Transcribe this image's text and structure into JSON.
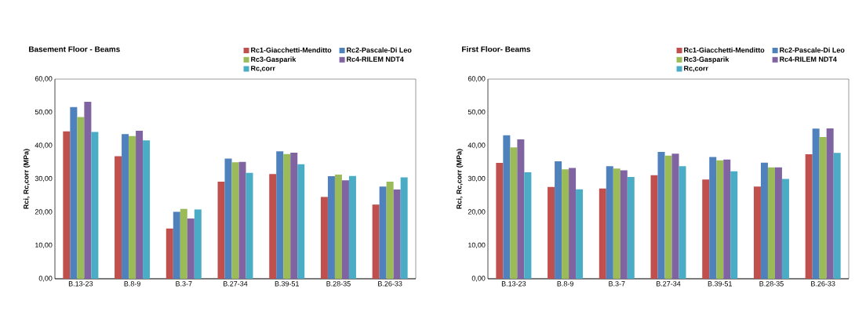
{
  "chart_data": [
    {
      "type": "bar",
      "title": "Basement Floor - Beams",
      "ylabel": "Rci, Rc,corr (MPa)",
      "categories": [
        "B.13-23",
        "B.8-9",
        "B.3-7",
        "B.27-34",
        "B.39-51",
        "B.28-35",
        "B.26-33"
      ],
      "series": [
        {
          "name": "Rc1-Giacchetti-Menditto",
          "color": "#c0504d",
          "values": [
            44.3,
            36.8,
            15.1,
            29.2,
            31.5,
            24.6,
            22.3
          ]
        },
        {
          "name": "Rc2-Pascale-Di Leo",
          "color": "#4f81bd",
          "values": [
            51.6,
            43.5,
            20.1,
            36.1,
            38.3,
            30.8,
            27.7
          ]
        },
        {
          "name": "Rc3-Gasparik",
          "color": "#9bbb59",
          "values": [
            48.6,
            42.9,
            21.0,
            35.0,
            37.5,
            31.3,
            29.2
          ]
        },
        {
          "name": "Rc4-RILEM NDT4",
          "color": "#8064a2",
          "values": [
            53.2,
            44.5,
            18.1,
            35.1,
            37.9,
            29.6,
            26.8
          ]
        },
        {
          "name": "Rc,corr",
          "color": "#4bacc6",
          "values": [
            44.1,
            41.6,
            20.8,
            31.8,
            34.4,
            30.9,
            30.5
          ]
        }
      ],
      "ylim": [
        0,
        60
      ],
      "yticks": [
        {
          "value": 0,
          "label": "0,00"
        },
        {
          "value": 10,
          "label": "10,00"
        },
        {
          "value": 20,
          "label": "20,00"
        },
        {
          "value": 30,
          "label": "30,00"
        },
        {
          "value": 40,
          "label": "40,00"
        },
        {
          "value": 50,
          "label": "50,00"
        },
        {
          "value": 60,
          "label": "60,00"
        }
      ],
      "legend": "top"
    },
    {
      "type": "bar",
      "title": "First Floor- Beams",
      "ylabel": "Rci, Rc,corr (MPa)",
      "categories": [
        "B.13-23",
        "B.8-9",
        "B.3-7",
        "B.27-34",
        "B.39-51",
        "B.28-35",
        "B.26-33"
      ],
      "series": [
        {
          "name": "Rc1-Giacchetti-Menditto",
          "color": "#c0504d",
          "values": [
            34.8,
            27.6,
            27.1,
            31.1,
            29.8,
            27.7,
            37.4
          ]
        },
        {
          "name": "Rc2-Pascale-Di Leo",
          "color": "#4f81bd",
          "values": [
            43.1,
            35.3,
            33.8,
            38.1,
            36.6,
            34.9,
            45.1
          ]
        },
        {
          "name": "Rc3-Gasparik",
          "color": "#9bbb59",
          "values": [
            39.5,
            32.9,
            33.1,
            37.0,
            35.6,
            33.5,
            42.6
          ]
        },
        {
          "name": "Rc4-RILEM NDT4",
          "color": "#8064a2",
          "values": [
            41.9,
            33.3,
            32.6,
            37.6,
            35.8,
            33.5,
            45.2
          ]
        },
        {
          "name": "Rc,corr",
          "color": "#4bacc6",
          "values": [
            32.0,
            26.9,
            30.6,
            33.8,
            32.3,
            30.0,
            37.8
          ]
        }
      ],
      "ylim": [
        0,
        60
      ],
      "yticks": [
        {
          "value": 0,
          "label": "0,00"
        },
        {
          "value": 10,
          "label": "10,00"
        },
        {
          "value": 20,
          "label": "20,00"
        },
        {
          "value": 30,
          "label": "30,00"
        },
        {
          "value": 40,
          "label": "40,00"
        },
        {
          "value": 50,
          "label": "50,00"
        },
        {
          "value": 60,
          "label": "60,00"
        }
      ],
      "legend": "top"
    }
  ]
}
